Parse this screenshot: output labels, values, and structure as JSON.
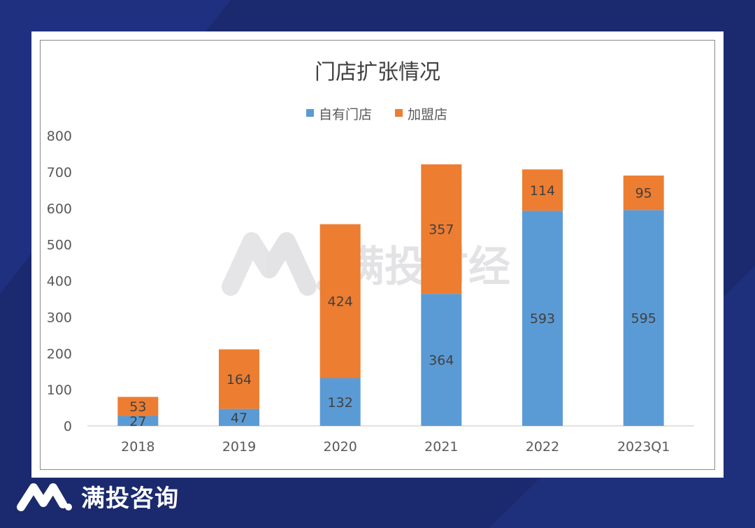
{
  "brand": {
    "name": "满投咨询",
    "watermark": "满投财经"
  },
  "colors": {
    "own": "#5b9bd5",
    "franchise": "#ed7d31",
    "background": "#1b2a6e"
  },
  "chart_data": {
    "type": "bar",
    "stacked": true,
    "title": "门店扩张情况",
    "categories": [
      "2018",
      "2019",
      "2020",
      "2021",
      "2022",
      "2023Q1"
    ],
    "series": [
      {
        "name": "自有门店",
        "values": [
          27,
          47,
          132,
          364,
          593,
          595
        ]
      },
      {
        "name": "加盟店",
        "values": [
          53,
          164,
          424,
          357,
          114,
          95
        ]
      }
    ],
    "ylim": [
      0,
      800
    ],
    "yticks": [
      0,
      100,
      200,
      300,
      400,
      500,
      600,
      700,
      800
    ],
    "legend": "top-center",
    "grid": false,
    "xlabel": "",
    "ylabel": ""
  }
}
